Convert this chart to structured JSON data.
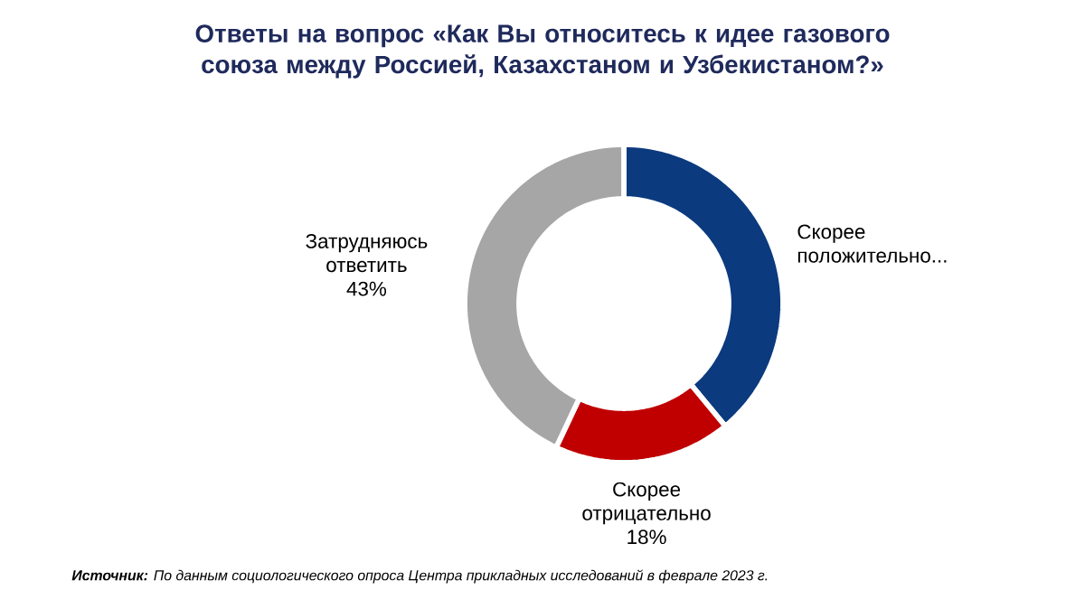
{
  "chart_data": {
    "type": "donut",
    "title": "Ответы на вопрос «Как Вы относитесь к идее газового союза между Россией, Казахстаном и Узбекистаном?»",
    "categories": [
      "Скорее положительно...",
      "Скорее отрицательно",
      "Затрудняюсь ответить"
    ],
    "values": [
      39,
      18,
      43
    ],
    "value_labels": [
      null,
      "18%",
      "43%"
    ],
    "colors": [
      "#0b3a7e",
      "#c00000",
      "#a6a6a6"
    ],
    "annotations": [
      "**Источник:** По данным социологического опроса Центра прикладных исследований в феврале 2023 г."
    ]
  }
}
